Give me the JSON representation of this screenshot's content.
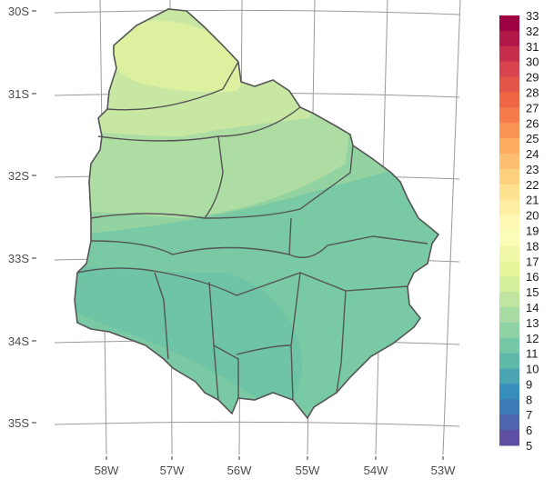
{
  "map": {
    "lat_labels": [
      "30S",
      "31S",
      "32S",
      "33S",
      "34S",
      "35S"
    ],
    "lon_labels": [
      "58W",
      "57W",
      "56W",
      "55W",
      "54W",
      "53W"
    ],
    "fill_colors": {
      "level_16": "#dcf0a0",
      "level_15": "#c7e7a3",
      "level_14": "#aedda4",
      "level_13": "#93d3a2",
      "level_12": "#78c9a4"
    },
    "border_color": "#555555",
    "grid_color": "#999999"
  },
  "legend": {
    "labels": [
      "33",
      "32",
      "31",
      "30",
      "29",
      "28",
      "27",
      "26",
      "25",
      "24",
      "23",
      "22",
      "21",
      "20",
      "19",
      "18",
      "17",
      "16",
      "15",
      "14",
      "13",
      "12",
      "11",
      "10",
      "9",
      "8",
      "7",
      "6",
      "5"
    ],
    "palette_stops": [
      "#9e0142",
      "#d53e4f",
      "#f46d43",
      "#fdae61",
      "#fee08b",
      "#ffffbf",
      "#e6f598",
      "#abdda4",
      "#66c2a5",
      "#3288bd",
      "#5e4fa2"
    ]
  }
}
